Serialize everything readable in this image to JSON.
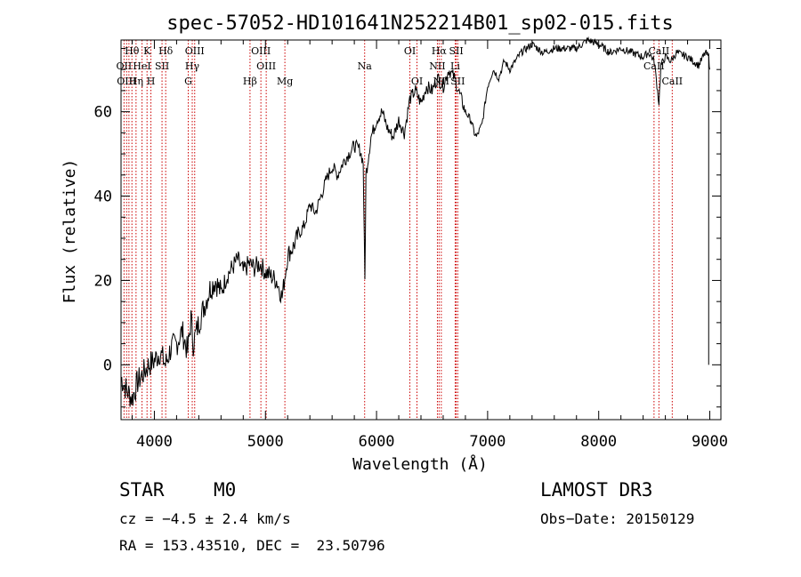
{
  "chart_data": {
    "type": "line",
    "title": "spec-57052-HD101641N252214B01_sp02-015.fits",
    "xlabel": "Wavelength (Å)",
    "ylabel": "Flux (relative)",
    "xlim": [
      3700,
      9100
    ],
    "ylim": [
      -13,
      77
    ],
    "x_ticks": [
      4000,
      5000,
      6000,
      7000,
      8000,
      9000
    ],
    "y_ticks": [
      0,
      20,
      40,
      60
    ],
    "x_tick_labels": [
      "4000",
      "5000",
      "6000",
      "7000",
      "8000",
      "9000"
    ],
    "y_tick_labels": [
      "0",
      "20",
      "40",
      "60"
    ],
    "series": [
      {
        "name": "flux",
        "x": [
          3700,
          3750,
          3800,
          3850,
          3900,
          3950,
          4000,
          4050,
          4100,
          4150,
          4200,
          4250,
          4300,
          4330,
          4350,
          4400,
          4450,
          4500,
          4550,
          4600,
          4650,
          4700,
          4750,
          4800,
          4850,
          4900,
          4950,
          5000,
          5050,
          5100,
          5150,
          5180,
          5200,
          5250,
          5300,
          5350,
          5400,
          5450,
          5500,
          5550,
          5600,
          5650,
          5700,
          5750,
          5800,
          5850,
          5880,
          5895,
          5905,
          5920,
          5950,
          6000,
          6050,
          6100,
          6150,
          6200,
          6250,
          6300,
          6350,
          6400,
          6450,
          6500,
          6550,
          6600,
          6650,
          6700,
          6750,
          6800,
          6850,
          6880,
          6900,
          6950,
          7000,
          7050,
          7100,
          7150,
          7200,
          7300,
          7400,
          7500,
          7600,
          7700,
          7800,
          7900,
          8000,
          8100,
          8200,
          8300,
          8400,
          8450,
          8500,
          8542,
          8560,
          8600,
          8650,
          8700,
          8800,
          8900,
          8960,
          8990,
          9000
        ],
        "y": [
          -3,
          -6,
          -8,
          -4,
          -2,
          0,
          1,
          3,
          0,
          4,
          5,
          8,
          3,
          11,
          5,
          10,
          14,
          18,
          20,
          17,
          21,
          23,
          25,
          22,
          24,
          23,
          24,
          22,
          21,
          20,
          16,
          22,
          26,
          28,
          31,
          33,
          38,
          36,
          40,
          44,
          47,
          45,
          48,
          50,
          52,
          51,
          48,
          20,
          45,
          48,
          54,
          58,
          60,
          56,
          54,
          58,
          55,
          63,
          65,
          62,
          66,
          65,
          68,
          66,
          70,
          68,
          64,
          60,
          58,
          55,
          54,
          57,
          66,
          70,
          68,
          72,
          70,
          74,
          76,
          74,
          75,
          75,
          75,
          77,
          76,
          74,
          75,
          74,
          73,
          74,
          72,
          62,
          71,
          73,
          72,
          74,
          73,
          71,
          74,
          73,
          70
        ]
      }
    ],
    "line_labels": [
      {
        "label": "Hθ",
        "x": 3798,
        "row": 1
      },
      {
        "label": "OII",
        "x": 3727,
        "row": 2
      },
      {
        "label": "OIII",
        "x": 3750,
        "row": 3
      },
      {
        "label": "Hη",
        "x": 3835,
        "row": 3
      },
      {
        "label": "HeI",
        "x": 3888,
        "row": 2
      },
      {
        "label": "K",
        "x": 3934,
        "row": 1
      },
      {
        "label": "SII",
        "x": 4069,
        "row": 2
      },
      {
        "label": "H",
        "x": 3969,
        "row": 3
      },
      {
        "label": "Hδ",
        "x": 4102,
        "row": 1
      },
      {
        "label": "OIII",
        "x": 4363,
        "row": 1
      },
      {
        "label": "Hγ",
        "x": 4341,
        "row": 2
      },
      {
        "label": "G",
        "x": 4305,
        "row": 3
      },
      {
        "label": "Hβ",
        "x": 4861,
        "row": 3
      },
      {
        "label": "OIII",
        "x": 4959,
        "row": 1
      },
      {
        "label": "OIII",
        "x": 5007,
        "row": 2
      },
      {
        "label": "Mg",
        "x": 5175,
        "row": 3
      },
      {
        "label": "Na",
        "x": 5893,
        "row": 2
      },
      {
        "label": "OI",
        "x": 6300,
        "row": 1
      },
      {
        "label": "OI",
        "x": 6364,
        "row": 3
      },
      {
        "label": "Hα",
        "x": 6563,
        "row": 1
      },
      {
        "label": "NII",
        "x": 6548,
        "row": 2
      },
      {
        "label": "NII",
        "x": 6583,
        "row": 3
      },
      {
        "label": "SII",
        "x": 6717,
        "row": 1
      },
      {
        "label": "Li",
        "x": 6708,
        "row": 2
      },
      {
        "label": "SII",
        "x": 6731,
        "row": 3
      },
      {
        "label": "CaII",
        "x": 8542,
        "row": 1
      },
      {
        "label": "CaII",
        "x": 8498,
        "row": 2
      },
      {
        "label": "CaII",
        "x": 8662,
        "row": 3
      }
    ],
    "line_marks": [
      3727,
      3750,
      3771,
      3798,
      3835,
      3889,
      3934,
      3969,
      4069,
      4102,
      4305,
      4341,
      4363,
      4861,
      4959,
      5007,
      5175,
      5893,
      6300,
      6364,
      6548,
      6563,
      6583,
      6708,
      6717,
      6731,
      8498,
      8542,
      8662
    ]
  },
  "info": {
    "object_type": "STAR",
    "subclass": "M0",
    "survey": "LAMOST DR3",
    "cz": "cz = −4.5 ± 2.4 km/s",
    "obs_date": "Obs−Date: 20150129",
    "coords": "RA = 153.43510, DEC =  23.50796"
  },
  "colors": {
    "line_marker": "#cc0000",
    "spectrum": "#000000"
  }
}
